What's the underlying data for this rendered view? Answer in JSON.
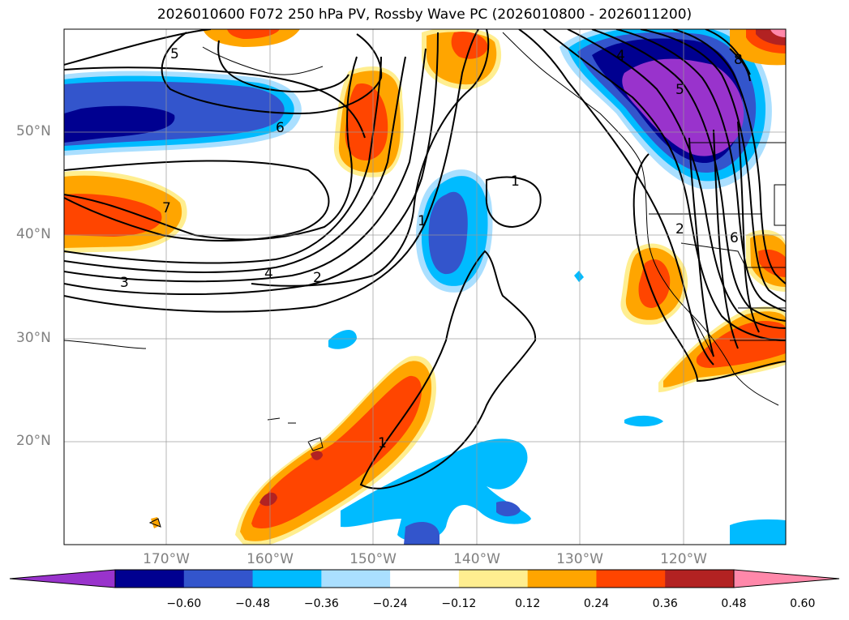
{
  "title": "2026010600 F072 250 hPa PV, Rossby Wave PC (2026010800 - 2026011200)",
  "lat_labels": [
    "50°N",
    "40°N",
    "30°N",
    "20°N"
  ],
  "lon_labels": [
    "170°W",
    "160°W",
    "150°W",
    "140°W",
    "130°W",
    "120°W"
  ],
  "colorbar": {
    "colors": [
      "#9933cc",
      "#000090",
      "#3355cc",
      "#00bbff",
      "#aadfff",
      "#ffffff",
      "#ffee90",
      "#ffa500",
      "#ff4500",
      "#b22222",
      "#ff88aa"
    ],
    "labels": [
      "−0.60",
      "−0.48",
      "−0.36",
      "−0.24",
      "−0.12",
      "0.12",
      "0.24",
      "0.36",
      "0.48",
      "0.60"
    ]
  },
  "contour_labels": [
    "5",
    "6",
    "7",
    "3",
    "4",
    "2",
    "1",
    "1",
    "1",
    "4",
    "5",
    "2",
    "6",
    "8"
  ]
}
